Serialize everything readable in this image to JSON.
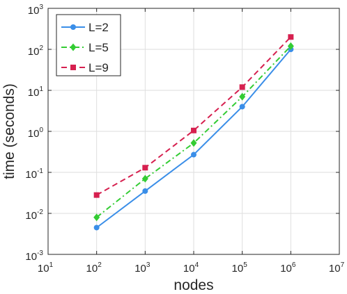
{
  "chart_data": {
    "type": "line",
    "title": "",
    "xlabel": "nodes",
    "ylabel": "time (seconds)",
    "xscale": "log",
    "yscale": "log",
    "xlim": [
      10,
      10000000
    ],
    "ylim": [
      0.001,
      1000
    ],
    "grid": true,
    "legend_position": "top-left",
    "x_tick_labels": [
      {
        "base": "10",
        "exp": "1"
      },
      {
        "base": "10",
        "exp": "2"
      },
      {
        "base": "10",
        "exp": "3"
      },
      {
        "base": "10",
        "exp": "4"
      },
      {
        "base": "10",
        "exp": "5"
      },
      {
        "base": "10",
        "exp": "6"
      },
      {
        "base": "10",
        "exp": "7"
      }
    ],
    "y_tick_labels": [
      {
        "base": "10",
        "exp": "-3"
      },
      {
        "base": "10",
        "exp": "-2"
      },
      {
        "base": "10",
        "exp": "-1"
      },
      {
        "base": "10",
        "exp": "0"
      },
      {
        "base": "10",
        "exp": "1"
      },
      {
        "base": "10",
        "exp": "2"
      },
      {
        "base": "10",
        "exp": "3"
      }
    ],
    "x": [
      100,
      1000,
      10000,
      100000,
      1000000
    ],
    "series": [
      {
        "name": "L=2",
        "values": [
          0.0045,
          0.035,
          0.27,
          4.0,
          100
        ],
        "color": "#3a8ee8",
        "line_style": "solid",
        "marker": "circle"
      },
      {
        "name": "L=5",
        "values": [
          0.008,
          0.07,
          0.52,
          7.0,
          120
        ],
        "color": "#33cc33",
        "line_style": "dash-dot",
        "marker": "diamond"
      },
      {
        "name": "L=9",
        "values": [
          0.028,
          0.13,
          1.05,
          12.0,
          200
        ],
        "color": "#d6204f",
        "line_style": "dashed",
        "marker": "square"
      }
    ]
  }
}
